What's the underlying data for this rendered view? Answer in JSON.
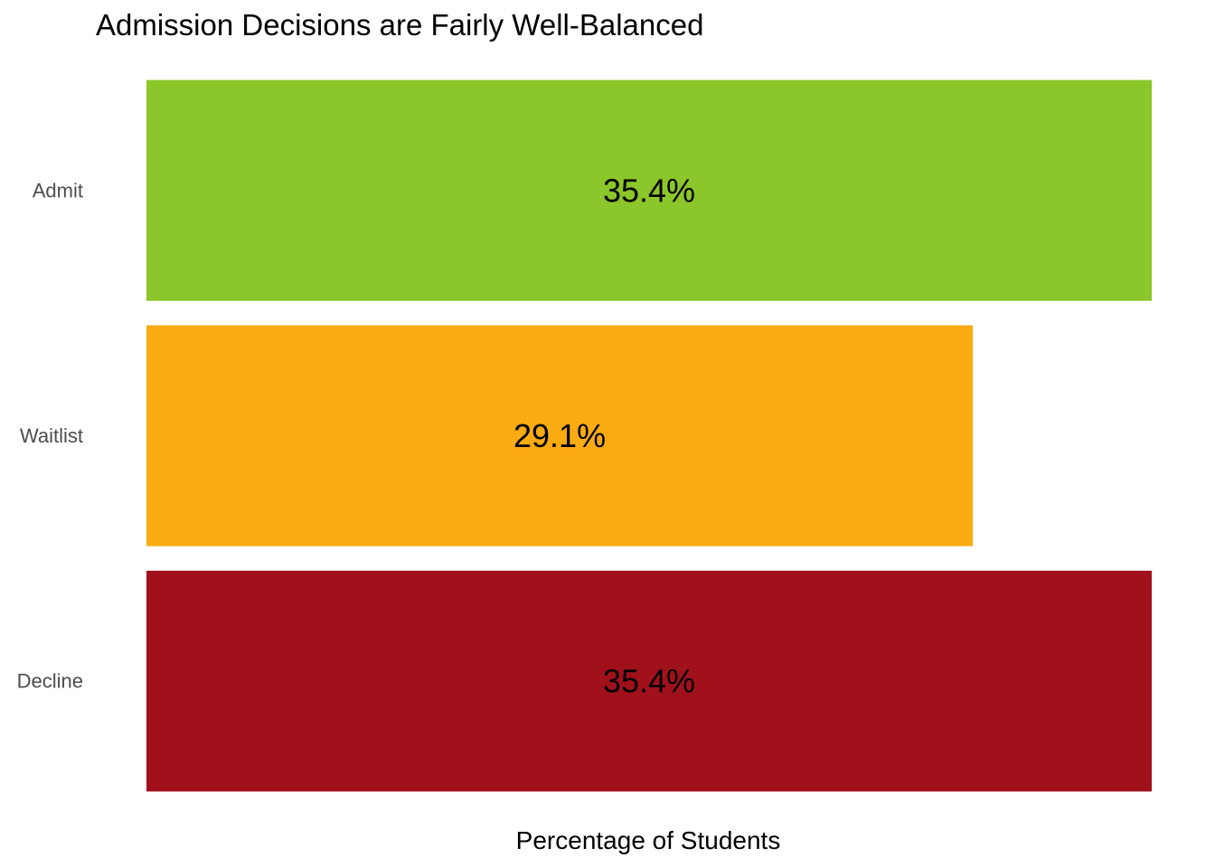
{
  "chart_data": {
    "type": "bar",
    "orientation": "horizontal",
    "title": "Admission Decisions are Fairly Well-Balanced",
    "xlabel": "Percentage of Students",
    "ylabel": "",
    "categories": [
      "Admit",
      "Waitlist",
      "Decline"
    ],
    "values": [
      35.4,
      29.1,
      35.4
    ],
    "value_labels": [
      "35.4%",
      "29.1%",
      "35.4%"
    ],
    "colors": [
      "#8bc62a",
      "#fbab12",
      "#a0111c"
    ],
    "xlim": [
      0,
      35.4
    ],
    "grid": false,
    "legend": "none"
  }
}
